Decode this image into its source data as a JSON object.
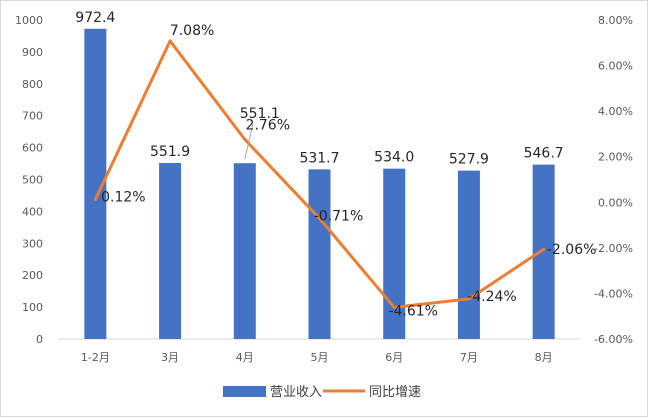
{
  "chart_data": {
    "type": "bar",
    "categories": [
      "1-2月",
      "3月",
      "4月",
      "5月",
      "6月",
      "7月",
      "8月"
    ],
    "series": [
      {
        "name": "营业收入",
        "type": "bar",
        "axis": "left",
        "color": "#4472C4",
        "values": [
          972.4,
          551.9,
          551.1,
          531.7,
          534.0,
          527.9,
          546.7
        ],
        "labels": [
          "972.4",
          "551.9",
          "551.1",
          "531.7",
          "534.0",
          "527.9",
          "546.7"
        ]
      },
      {
        "name": "同比增速",
        "type": "line",
        "axis": "right",
        "color": "#ED7D31",
        "values": [
          0.12,
          7.08,
          2.76,
          -0.71,
          -4.61,
          -4.24,
          -2.06
        ],
        "labels": [
          "0.12%",
          "7.08%",
          "2.76%",
          "-0.71%",
          "-4.61%",
          "-4.24%",
          "-2.06%"
        ]
      }
    ],
    "y_left": {
      "range": [
        0,
        1000
      ],
      "ticks": [
        "0",
        "100",
        "200",
        "300",
        "400",
        "500",
        "600",
        "700",
        "800",
        "900",
        "1000"
      ]
    },
    "y_right": {
      "range": [
        -6,
        8
      ],
      "unit": "%",
      "ticks": [
        "-6.00%",
        "-4.00%",
        "-2.00%",
        "0.00%",
        "2.00%",
        "4.00%",
        "6.00%",
        "8.00%"
      ]
    },
    "grid": false,
    "legend": "bottom"
  }
}
